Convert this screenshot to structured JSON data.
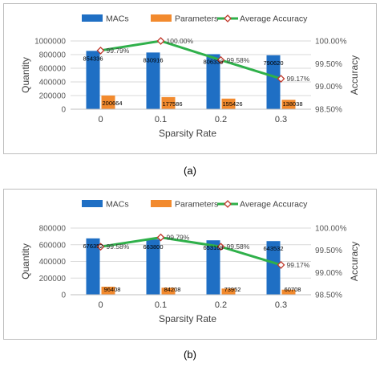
{
  "captions": {
    "a": "(a)",
    "b": "(b)"
  },
  "colors": {
    "macs": "#1f6fc4",
    "params": "#f28a2e",
    "accuracy_line": "#2fb04a",
    "accuracy_marker_fill": "#ffffff",
    "accuracy_marker_stroke": "#c0392b",
    "grid": "#d9d9d9",
    "axis_text": "#595959"
  },
  "chart_data": [
    {
      "type": "bar",
      "categories": [
        "0",
        "0.1",
        "0.2",
        "0.3"
      ],
      "series": [
        {
          "name": "MACs",
          "values": [
            854336,
            830916,
            806336,
            790620
          ],
          "labels": [
            "854336",
            "830916",
            "806336",
            "790620"
          ]
        },
        {
          "name": "Parameters",
          "values": [
            200664,
            177586,
            155426,
            138038
          ],
          "labels": [
            "200664",
            "177586",
            "155426",
            "138038"
          ]
        },
        {
          "name": "Average Accuracy",
          "type": "line",
          "axis": "right",
          "values": [
            99.79,
            100.0,
            99.58,
            99.17
          ],
          "labels": [
            "99.79%",
            "100.00%",
            "99.58%",
            "99.17%"
          ]
        }
      ],
      "xlabel": "Sparsity Rate",
      "ylabel": "Quantity",
      "y2label": "Accuracy",
      "ylim": [
        0,
        1000000
      ],
      "yticks": [
        "0",
        "200000",
        "400000",
        "600000",
        "800000",
        "1000000"
      ],
      "y2lim": [
        98.5,
        100.0
      ],
      "y2ticks": [
        "98.50%",
        "99.00%",
        "99.50%",
        "100.00%"
      ],
      "grid": true,
      "legend": "top"
    },
    {
      "type": "bar",
      "categories": [
        "0",
        "0.1",
        "0.2",
        "0.3"
      ],
      "series": [
        {
          "name": "MACs",
          "values": [
            676352,
            663800,
            653168,
            643532
          ],
          "labels": [
            "676352",
            "663800",
            "653168",
            "643532"
          ]
        },
        {
          "name": "Parameters",
          "values": [
            96408,
            84208,
            73952,
            60708
          ],
          "labels": [
            "96408",
            "84208",
            "73952",
            "60708"
          ]
        },
        {
          "name": "Average Accuracy",
          "type": "line",
          "axis": "right",
          "values": [
            99.58,
            99.79,
            99.58,
            99.17
          ],
          "labels": [
            "99.58%",
            "99.79%",
            "99.58%",
            "99.17%"
          ]
        }
      ],
      "xlabel": "Sparsity Rate",
      "ylabel": "Quantity",
      "y2label": "Accuracy",
      "ylim": [
        0,
        800000
      ],
      "yticks": [
        "0",
        "200000",
        "400000",
        "600000",
        "800000"
      ],
      "y2lim": [
        98.5,
        100.0
      ],
      "y2ticks": [
        "98.50%",
        "99.00%",
        "99.50%",
        "100.00%"
      ],
      "grid": true,
      "legend": "top"
    }
  ]
}
